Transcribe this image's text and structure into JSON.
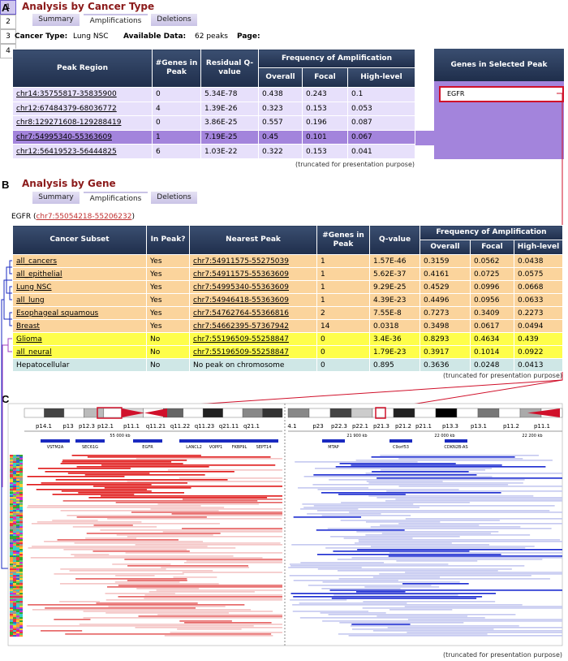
{
  "panel_a": {
    "label": "A",
    "title": "Analysis by Cancer Type",
    "tabs": [
      "Summary",
      "Amplifications",
      "Deletions"
    ],
    "cancer_type_label": "Cancer Type:",
    "cancer_type": "Lung NSC",
    "available_label": "Available Data:",
    "available": "62 peaks",
    "page_label": "Page:",
    "pages": [
      "1",
      "2",
      "3",
      "4"
    ],
    "table": {
      "header": [
        "Peak Region",
        "#Genes in Peak",
        "Residual Q-value"
      ],
      "freq_header": "Frequency of Amplification",
      "freq_sub": [
        "Overall",
        "Focal",
        "High-level"
      ],
      "rows": [
        [
          "chr14:35755817-35835900",
          "0",
          "5.34E-78",
          "0.438",
          "0.243",
          "0.1"
        ],
        [
          "chr12:67484379-68036772",
          "4",
          "1.39E-26",
          "0.323",
          "0.153",
          "0.053"
        ],
        [
          "chr8:129271608-129288419",
          "0",
          "3.86E-25",
          "0.557",
          "0.196",
          "0.087"
        ],
        [
          "chr7:54995340-55363609",
          "1",
          "7.19E-25",
          "0.45",
          "0.101",
          "0.067"
        ],
        [
          "chr12:56419523-56444825",
          "6",
          "1.03E-22",
          "0.322",
          "0.153",
          "0.041"
        ]
      ]
    },
    "genes_header": "Genes in Selected Peak",
    "genes": [
      "EGFR"
    ],
    "note": "(truncated for presentation purpose)"
  },
  "panel_b": {
    "label": "B",
    "title": "Analysis by Gene",
    "tabs": [
      "Summary",
      "Amplifications",
      "Deletions"
    ],
    "gene": "EGFR",
    "gene_locus": "chr7:55054218-55206232",
    "table": {
      "header": [
        "Cancer Subset",
        "In Peak?",
        "Nearest Peak",
        "#Genes in Peak",
        "Q-value"
      ],
      "freq_header": "Frequency of Amplification",
      "freq_sub": [
        "Overall",
        "Focal",
        "High-level"
      ],
      "rows": [
        [
          "all_cancers",
          "Yes",
          "chr7:54911575-55275039",
          "1",
          "1.57E-46",
          "0.3159",
          "0.0562",
          "0.0438"
        ],
        [
          "all_epithelial",
          "Yes",
          "chr7:54911575-55363609",
          "1",
          "5.62E-37",
          "0.4161",
          "0.0725",
          "0.0575"
        ],
        [
          "Lung NSC",
          "Yes",
          "chr7:54995340-55363609",
          "1",
          "9.29E-25",
          "0.4529",
          "0.0996",
          "0.0668"
        ],
        [
          "all_lung",
          "Yes",
          "chr7:54946418-55363609",
          "1",
          "4.39E-23",
          "0.4496",
          "0.0956",
          "0.0633"
        ],
        [
          "Esophageal squamous",
          "Yes",
          "chr7:54762764-55366816",
          "2",
          "7.55E-8",
          "0.7273",
          "0.3409",
          "0.2273"
        ],
        [
          "Breast",
          "Yes",
          "chr7:54662395-57367942",
          "14",
          "0.0318",
          "0.3498",
          "0.0617",
          "0.0494"
        ],
        [
          "Glioma",
          "No",
          "chr7:55196509-55258847",
          "0",
          "3.4E-36",
          "0.8293",
          "0.4634",
          "0.439"
        ],
        [
          "all_neural",
          "No",
          "chr7:55196509-55258847",
          "0",
          "1.79E-23",
          "0.3917",
          "0.1014",
          "0.0922"
        ],
        [
          "Hepatocellular",
          "No",
          "No peak on chromosome",
          "0",
          "0.895",
          "0.3636",
          "0.0248",
          "0.0413"
        ]
      ]
    },
    "note": "(truncated for presentation purpose)"
  },
  "panel_c": {
    "label": "C",
    "left_bands": [
      "p14.1",
      "p13",
      "p12.3",
      "p12.1",
      "p11.1",
      "q11.21",
      "q11.22",
      "q11.23",
      "q21.11",
      "q21.1"
    ],
    "right_bands": [
      "4.1",
      "p23",
      "p22.3",
      "p22.1",
      "p21.3",
      "p21.2",
      "p21.1",
      "p13.3",
      "p13.1",
      "p11.2",
      "p11.1"
    ],
    "left_kb": [
      "55 000 kb"
    ],
    "right_kb": [
      "21 900 kb",
      "22 000 kb",
      "22 200 kb"
    ],
    "left_genes": [
      "VSTM2A",
      "SEC61G",
      "EGFR",
      "LANCL2",
      "VOPP1",
      "FKBP9L",
      "SEPT14"
    ],
    "right_genes": [
      "MTAP",
      "C9orf53",
      "CDKN2B-AS"
    ],
    "note": "(truncated for presentation purpose)"
  }
}
